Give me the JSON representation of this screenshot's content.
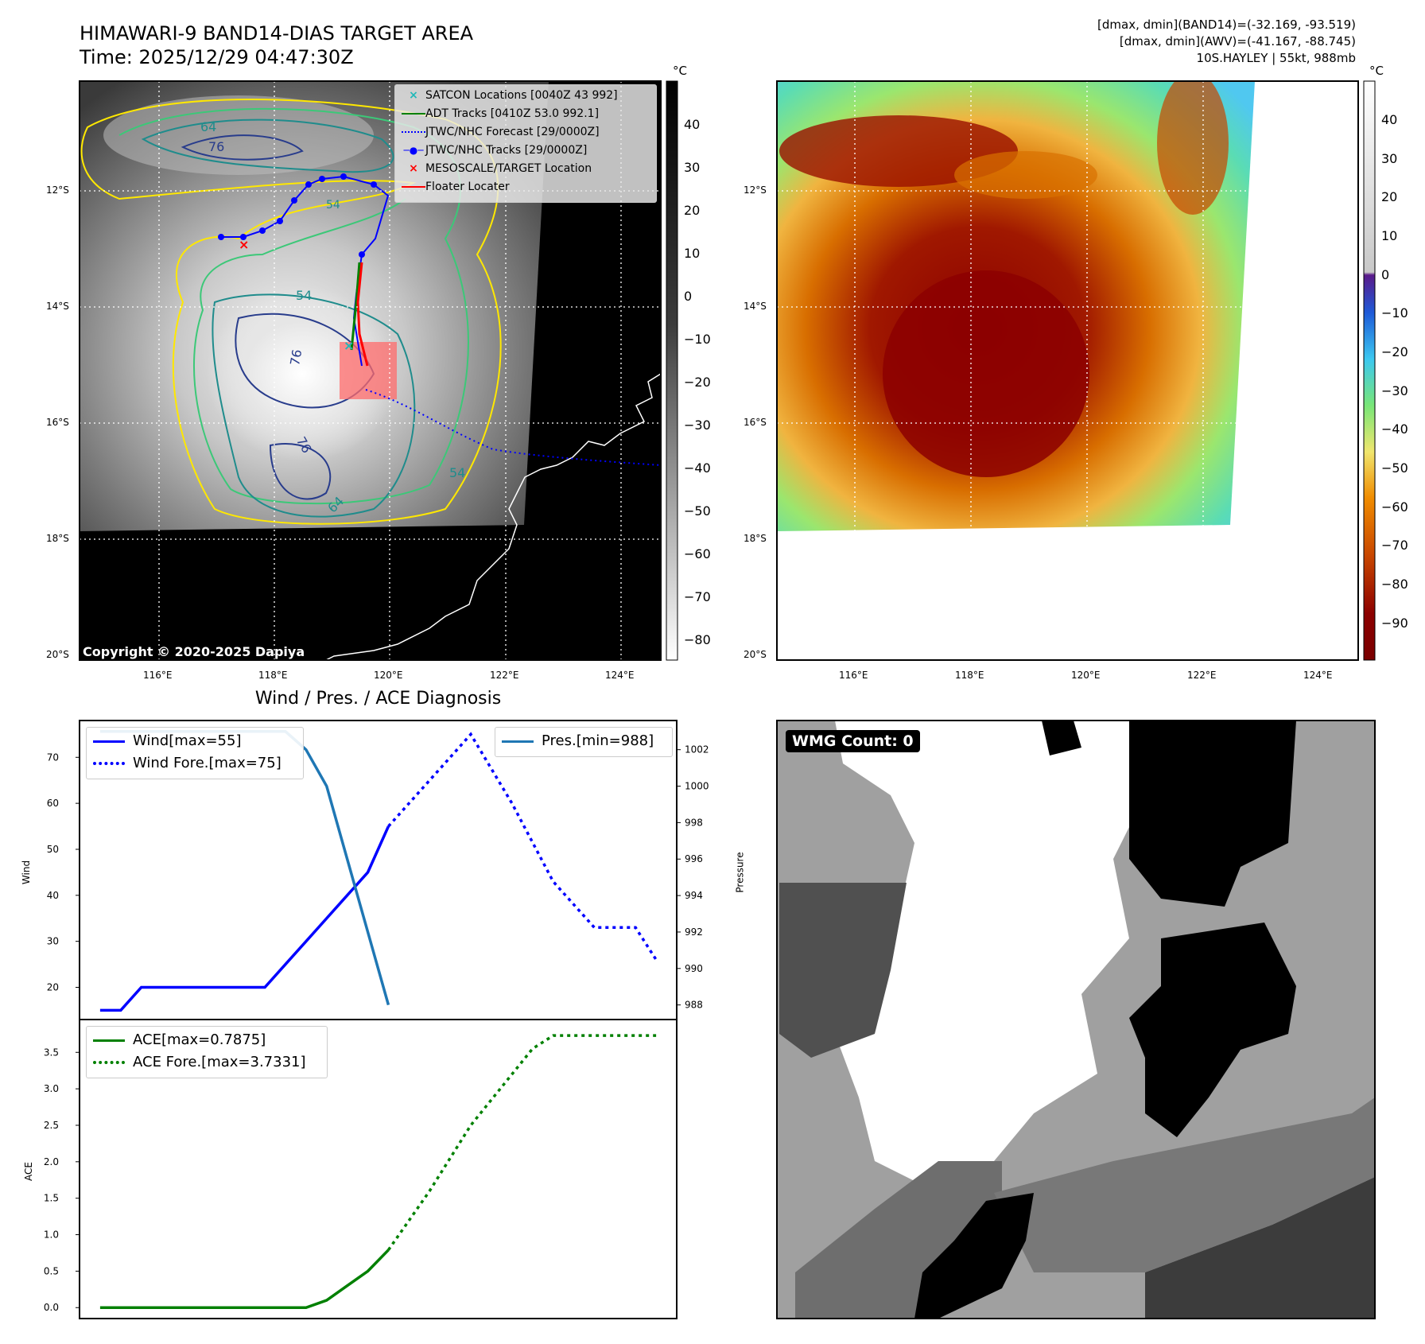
{
  "header": {
    "title_line1": "HIMAWARI-9 BAND14-DIAS TARGET AREA",
    "title_line2": "Time: 2025/12/29 04:47:30Z",
    "info_line1": "[dmax, dmin](BAND14)=(-32.169, -93.519)",
    "info_line2": "[dmax, dmin](AWV)=(-41.167, -88.745)",
    "info_line3": "10S.HAYLEY | 55kt, 988mb"
  },
  "map": {
    "lat_labels": [
      "12°S",
      "14°S",
      "16°S",
      "18°S",
      "20°S"
    ],
    "lon_labels": [
      "116°E",
      "118°E",
      "120°E",
      "122°E",
      "124°E"
    ],
    "copyright": "Copyright © 2020-2025 Dapiya",
    "contour_labels": [
      "64",
      "76",
      "54",
      "76",
      "76",
      "54",
      "64",
      "54"
    ],
    "legend": [
      {
        "label": "SATCON Locations [0040Z 43 992]",
        "color": "#1fb8b8"
      },
      {
        "label": "ADT Tracks [0410Z 53.0 992.1]",
        "color": "#008000"
      },
      {
        "label": "JTWC/NHC Forecast [29/0000Z]",
        "color": "#0000ff"
      },
      {
        "label": "JTWC/NHC Tracks [29/0000Z]",
        "color": "#0000ff"
      },
      {
        "label": "MESOSCALE/TARGET Location",
        "color": "#ff0000"
      },
      {
        "label": "Floater Locater",
        "color": "#ff0000"
      }
    ]
  },
  "colorbar_gray": {
    "unit": "°C",
    "ticks": [
      "40",
      "30",
      "20",
      "10",
      "0",
      "−10",
      "−20",
      "−30",
      "−40",
      "−50",
      "−60",
      "−70",
      "−80"
    ]
  },
  "colorbar_color": {
    "unit": "°C",
    "ticks": [
      "40",
      "30",
      "20",
      "10",
      "0",
      "−10",
      "−20",
      "−30",
      "−40",
      "−50",
      "−60",
      "−70",
      "−80",
      "−90"
    ]
  },
  "diagnosis": {
    "title": "Wind / Pres. / ACE Diagnosis",
    "wind_ylabel": "Wind",
    "pres_ylabel": "Pressure",
    "ace_ylabel": "ACE",
    "legend_wind": "Wind[max=55]",
    "legend_wind_fore": "Wind Fore.[max=75]",
    "legend_pres": "Pres.[min=988]",
    "legend_ace": "ACE[max=0.7875]",
    "legend_ace_fore": "ACE Fore.[max=3.7331]"
  },
  "chart_data": [
    {
      "type": "line",
      "title": "Wind / Pres. / ACE Diagnosis",
      "ylabel": "Wind",
      "ylim": [
        13,
        78
      ],
      "yticks": [
        20,
        30,
        40,
        50,
        60,
        70
      ],
      "x": [
        0,
        1,
        2,
        3,
        4,
        5,
        6,
        7,
        8,
        9,
        10,
        11,
        12,
        13,
        14
      ],
      "series": [
        {
          "name": "Wind[max=55]",
          "values": [
            15,
            15,
            20,
            20,
            20,
            20,
            20,
            20,
            20,
            25,
            30,
            35,
            40,
            45,
            55
          ],
          "color": "#0000ff",
          "style": "solid"
        },
        {
          "name": "Wind Fore.[max=75]",
          "x": [
            14,
            16,
            18,
            20,
            22,
            24,
            26,
            27
          ],
          "values": [
            55,
            65,
            75,
            60,
            43,
            33,
            33,
            26
          ],
          "color": "#0000ff",
          "style": "dotted"
        }
      ]
    },
    {
      "type": "line",
      "ylabel": "Pressure",
      "ylim": [
        987.2,
        1003.6
      ],
      "yticks": [
        988,
        990,
        992,
        994,
        996,
        998,
        1000,
        1002
      ],
      "series": [
        {
          "name": "Pres.[min=988]",
          "x": [
            0,
            1,
            2,
            3,
            4,
            5,
            6,
            7,
            8,
            9,
            10,
            11,
            12,
            13,
            14
          ],
          "values": [
            1003,
            1003,
            1003,
            1003,
            1003,
            1003,
            1003,
            1003,
            1003,
            1003,
            1002,
            1000,
            996,
            992,
            988
          ],
          "color": "#1f77b4",
          "style": "solid"
        }
      ]
    },
    {
      "type": "line",
      "ylabel": "ACE",
      "ylim": [
        -0.15,
        3.95
      ],
      "yticks": [
        0.0,
        0.5,
        1.0,
        1.5,
        2.0,
        2.5,
        3.0,
        3.5
      ],
      "series": [
        {
          "name": "ACE[max=0.7875]",
          "x": [
            0,
            1,
            2,
            3,
            4,
            5,
            6,
            7,
            8,
            9,
            10,
            11,
            12,
            13,
            14
          ],
          "values": [
            0,
            0,
            0,
            0,
            0,
            0,
            0,
            0,
            0,
            0,
            0,
            0.1,
            0.3,
            0.5,
            0.79
          ],
          "color": "#008000",
          "style": "solid"
        },
        {
          "name": "ACE Fore.[max=3.7331]",
          "x": [
            14,
            16,
            18,
            19,
            20,
            21,
            22,
            24,
            26,
            27
          ],
          "values": [
            0.79,
            1.6,
            2.5,
            2.85,
            3.2,
            3.55,
            3.73,
            3.73,
            3.73,
            3.73
          ],
          "color": "#008000",
          "style": "dotted"
        }
      ]
    }
  ],
  "wmg": {
    "label": "WMG Count: 0"
  }
}
